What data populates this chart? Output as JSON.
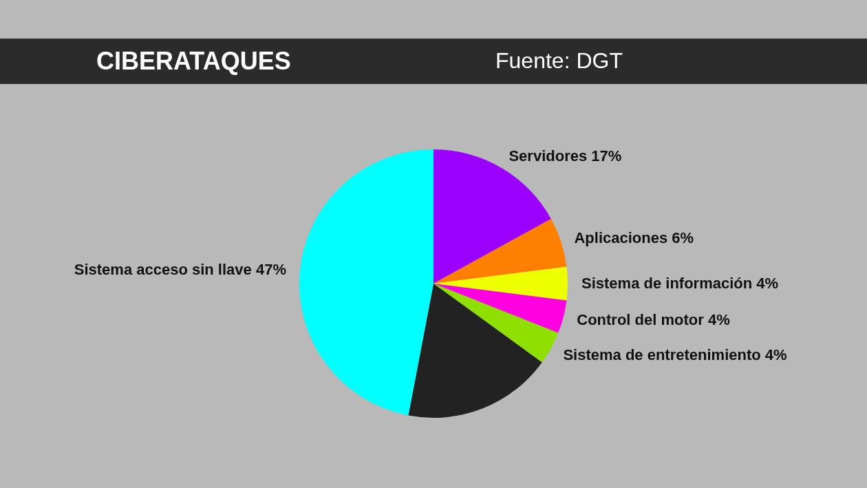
{
  "chart_data": {
    "type": "pie",
    "title": "CIBERATAQUES",
    "annotations": [
      "Fuente: DGT"
    ],
    "categories": [
      "Servidores",
      "Aplicaciones",
      "Sistema de información",
      "Control del motor",
      "Sistema de entretenimiento",
      null,
      "Sistema acceso sin llave"
    ],
    "values": [
      17,
      6,
      4,
      4,
      4,
      18,
      47
    ],
    "value_labels": [
      "17%",
      "6%",
      "4%",
      "4%",
      "4%",
      null,
      "47%"
    ],
    "colors": [
      "#9b00ff",
      "#ff7f00",
      "#eeff00",
      "#ff00e0",
      "#8de000",
      "#222222",
      "#00ffff"
    ]
  }
}
